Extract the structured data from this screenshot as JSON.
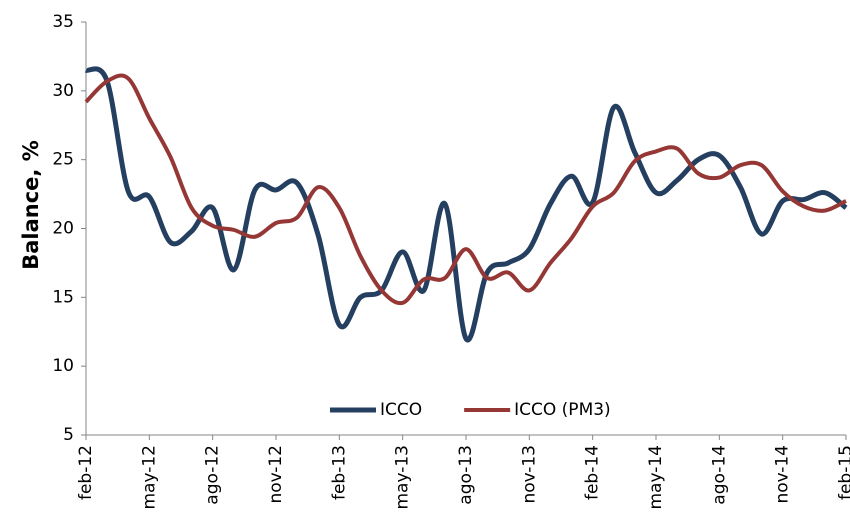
{
  "chart_data": {
    "type": "line",
    "ylabel": "Balance, %",
    "categories": [
      "feb-12",
      null,
      null,
      "may-12",
      null,
      null,
      "ago-12",
      null,
      null,
      "nov-12",
      null,
      null,
      "feb-13",
      null,
      null,
      "may-13",
      null,
      null,
      "ago-13",
      null,
      null,
      "nov-13",
      null,
      null,
      "feb-14",
      null,
      null,
      "may-14",
      null,
      null,
      "ago-14",
      null,
      null,
      "nov-14",
      null,
      null,
      "feb-15"
    ],
    "series": [
      {
        "name": "ICCO",
        "color": "#243f60",
        "values": [
          31.5,
          30.7,
          22.7,
          22.3,
          19.0,
          19.8,
          21.5,
          17.0,
          22.8,
          22.8,
          23.3,
          19.5,
          13.0,
          15.0,
          15.5,
          18.3,
          15.5,
          21.8,
          12.0,
          16.8,
          17.5,
          18.5,
          21.8,
          23.8,
          21.9,
          28.8,
          25.5,
          22.6,
          23.5,
          25.0,
          25.3,
          23.0,
          19.6,
          22.0,
          22.1,
          22.6,
          21.5
        ]
      },
      {
        "name": "ICCO (PM3)",
        "color": "#953735",
        "values": [
          29.2,
          30.7,
          30.9,
          28.0,
          25.2,
          21.5,
          20.2,
          19.9,
          19.4,
          20.4,
          20.8,
          23.0,
          21.5,
          18.0,
          15.5,
          14.6,
          16.3,
          16.4,
          18.5,
          16.4,
          16.8,
          15.5,
          17.5,
          19.3,
          21.6,
          22.6,
          24.9,
          25.6,
          25.8,
          24.0,
          23.7,
          24.6,
          24.6,
          22.7,
          21.6,
          21.3,
          22.0
        ]
      }
    ],
    "ylim": [
      5,
      35
    ],
    "yticks": [
      5,
      10,
      15,
      20,
      25,
      30,
      35
    ],
    "grid": false,
    "legend": "bottom"
  }
}
